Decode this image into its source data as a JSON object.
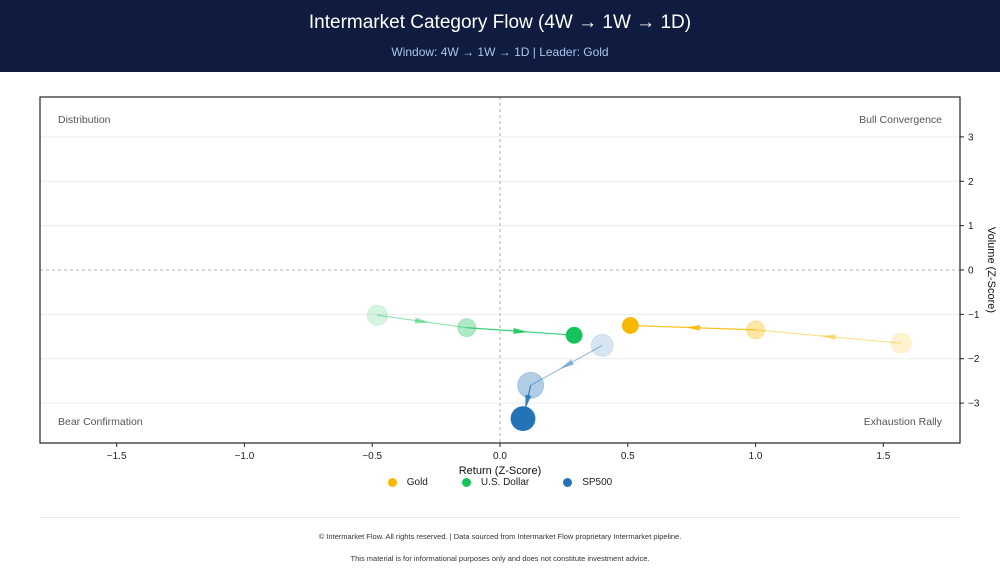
{
  "header": {
    "title": "Intermarket Category Flow (4W → 1W → 1D)",
    "subtitle": "Window: 4W → 1W → 1D  |  Leader: Gold"
  },
  "footer": {
    "line1": "© Intermarket Flow. All rights reserved.  |  Data sourced from Intermarket Flow proprietary Intermarket pipeline.",
    "line2": "This material is for informational purposes only and does not constitute investment advice."
  },
  "chart_data": {
    "type": "scatter",
    "xlabel": "Return (Z-Score)",
    "ylabel": "Volume (Z-Score)",
    "xlim": [
      -1.8,
      1.8
    ],
    "ylim": [
      -3.9,
      3.9
    ],
    "xticks": [
      -1.5,
      -1.0,
      -0.5,
      0.0,
      0.5,
      1.0,
      1.5
    ],
    "xtick_labels": [
      "−1.5",
      "−1.0",
      "−0.5",
      "0.0",
      "0.5",
      "1.0",
      "1.5"
    ],
    "yticks": [
      3,
      2,
      1,
      0,
      -1,
      -2,
      -3
    ],
    "ytick_labels": [
      "3",
      "2",
      "1",
      "0",
      "−1",
      "−2",
      "−3"
    ],
    "quadrants": {
      "top_left": "Distribution",
      "top_right": "Bull Convergence",
      "bottom_left": "Bear Confirmation",
      "bottom_right": "Exhaustion Rally"
    },
    "grid": true,
    "legend_position": "bottom-center",
    "series": [
      {
        "name": "Gold",
        "color": "#f9b800",
        "points": [
          {
            "x": 1.57,
            "y": -1.65
          },
          {
            "x": 1.0,
            "y": -1.35
          },
          {
            "x": 0.51,
            "y": -1.25
          }
        ]
      },
      {
        "name": "U.S. Dollar",
        "color": "#14c45a",
        "points": [
          {
            "x": -0.48,
            "y": -1.02
          },
          {
            "x": -0.13,
            "y": -1.3
          },
          {
            "x": 0.29,
            "y": -1.47
          }
        ]
      },
      {
        "name": "SP500",
        "color": "#2374b6",
        "points": [
          {
            "x": 0.4,
            "y": -1.7
          },
          {
            "x": 0.12,
            "y": -2.6
          },
          {
            "x": 0.09,
            "y": -3.35
          }
        ]
      }
    ]
  }
}
